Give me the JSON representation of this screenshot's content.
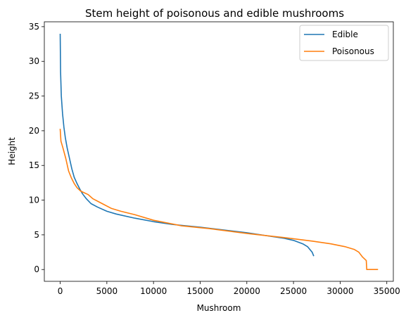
{
  "chart_data": {
    "type": "line",
    "title": "Stem height of poisonous and edible mushrooms",
    "xlabel": "Mushroom",
    "ylabel": "Height",
    "xlim": [
      -1700,
      35700
    ],
    "ylim": [
      -1.7,
      35.7
    ],
    "xticks": [
      0,
      5000,
      10000,
      15000,
      20000,
      25000,
      30000,
      35000
    ],
    "yticks": [
      0,
      5,
      10,
      15,
      20,
      25,
      30,
      35
    ],
    "grid": false,
    "legend_position": "top-right",
    "series": [
      {
        "name": "Edible",
        "color": "#1f77b4",
        "points": [
          [
            0,
            33.9
          ],
          [
            40,
            28.5
          ],
          [
            120,
            25.0
          ],
          [
            250,
            22.5
          ],
          [
            400,
            20.5
          ],
          [
            550,
            19.0
          ],
          [
            750,
            17.5
          ],
          [
            1000,
            16.0
          ],
          [
            1250,
            14.5
          ],
          [
            1500,
            13.3
          ],
          [
            1800,
            12.4
          ],
          [
            2100,
            11.6
          ],
          [
            2400,
            10.9
          ],
          [
            2800,
            10.2
          ],
          [
            3300,
            9.5
          ],
          [
            4000,
            9.0
          ],
          [
            5000,
            8.4
          ],
          [
            6000,
            8.0
          ],
          [
            8000,
            7.4
          ],
          [
            10000,
            6.9
          ],
          [
            12000,
            6.5
          ],
          [
            15000,
            6.1
          ],
          [
            20000,
            5.3
          ],
          [
            22000,
            4.9
          ],
          [
            24000,
            4.5
          ],
          [
            25000,
            4.2
          ],
          [
            26000,
            3.7
          ],
          [
            26500,
            3.3
          ],
          [
            27000,
            2.5
          ],
          [
            27150,
            2.0
          ]
        ]
      },
      {
        "name": "Poisonous",
        "color": "#ff7f0e",
        "points": [
          [
            0,
            20.2
          ],
          [
            80,
            18.5
          ],
          [
            300,
            17.5
          ],
          [
            600,
            16.0
          ],
          [
            900,
            14.2
          ],
          [
            1200,
            13.2
          ],
          [
            1500,
            12.4
          ],
          [
            1800,
            11.8
          ],
          [
            2200,
            11.3
          ],
          [
            3000,
            10.8
          ],
          [
            3500,
            10.2
          ],
          [
            4500,
            9.5
          ],
          [
            5500,
            8.8
          ],
          [
            6500,
            8.4
          ],
          [
            8000,
            7.9
          ],
          [
            10000,
            7.1
          ],
          [
            13000,
            6.3
          ],
          [
            16000,
            5.9
          ],
          [
            20000,
            5.2
          ],
          [
            24000,
            4.6
          ],
          [
            27000,
            4.1
          ],
          [
            29000,
            3.7
          ],
          [
            30500,
            3.3
          ],
          [
            31500,
            2.9
          ],
          [
            32000,
            2.5
          ],
          [
            32400,
            1.8
          ],
          [
            32800,
            1.3
          ],
          [
            32850,
            0.0
          ],
          [
            34000,
            0.0
          ]
        ]
      }
    ]
  }
}
